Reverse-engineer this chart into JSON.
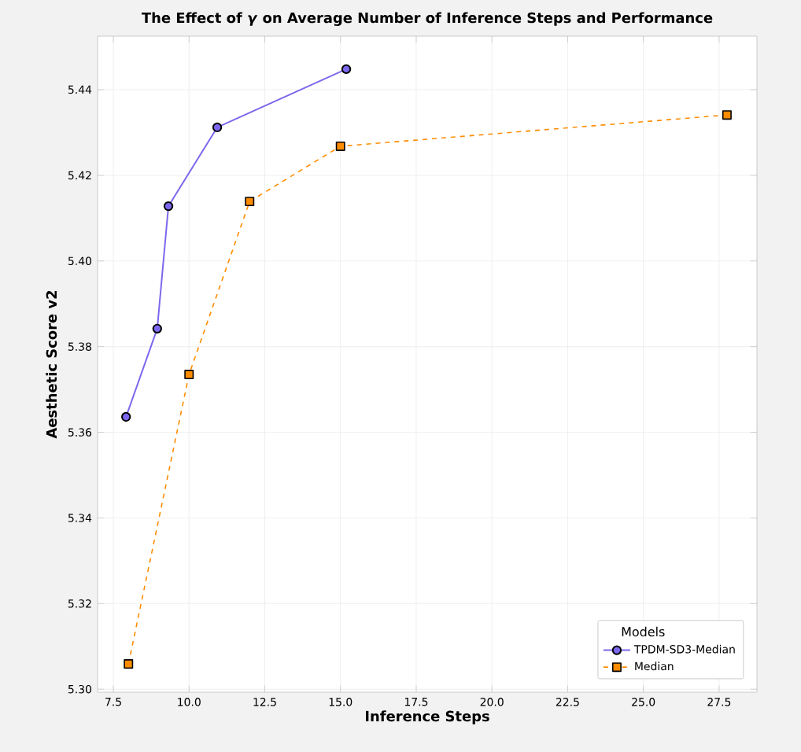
{
  "chart_data": {
    "type": "line",
    "title": "The Effect of *γ* on Average Number of Inference Steps and Performance",
    "xlabel": "Inference Steps",
    "ylabel": "Aesthetic Score v2",
    "legend_title": "Models",
    "xlim": [
      6.98,
      28.75
    ],
    "ylim": [
      5.2993,
      5.4525
    ],
    "xticks": [
      7.5,
      {
        "value": 10,
        "label": "10.0"
      },
      12.5,
      {
        "value": 15,
        "label": "15.0"
      },
      17.5,
      {
        "value": 20,
        "label": "20.0"
      },
      22.5,
      {
        "value": 25,
        "label": "25.0"
      },
      27.5
    ],
    "yticks": [
      {
        "value": 5.3,
        "label": "5.30"
      },
      5.32,
      5.34,
      5.36,
      5.38,
      {
        "value": 5.4,
        "label": "5.40"
      },
      5.42,
      5.44
    ],
    "grid": true,
    "legend": "bottom right",
    "series": [
      {
        "name": "TPDM-SD3-Median",
        "color": "#7b68ee",
        "marker": "circle",
        "line_style": "solid",
        "x": [
          7.92,
          8.95,
          9.32,
          10.93,
          15.19
        ],
        "values": [
          5.3636,
          5.3842,
          5.4128,
          5.4312,
          5.4448
        ]
      },
      {
        "name": "Median",
        "color": "#ff8c00",
        "marker": "square",
        "line_style": "dashed",
        "x": [
          8.0,
          10.0,
          12.0,
          15.0,
          27.76
        ],
        "values": [
          5.3059,
          5.3735,
          5.4139,
          5.4268,
          5.4341
        ]
      }
    ]
  }
}
